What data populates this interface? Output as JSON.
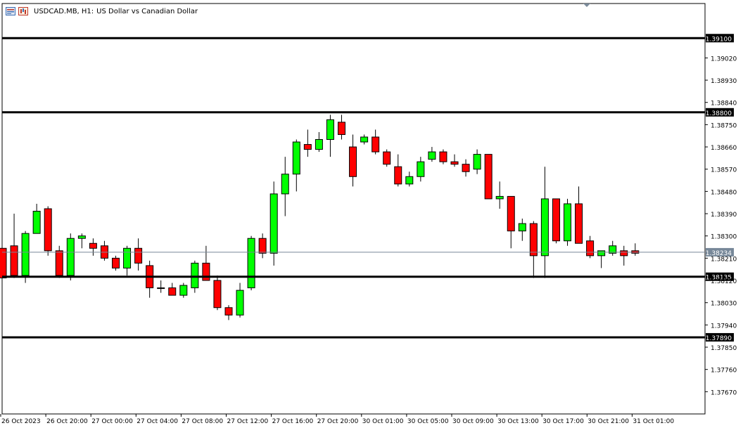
{
  "title": {
    "symbol": "USDCAD.MB, H1:",
    "description": "US Dollar vs Canadian Dollar"
  },
  "colors": {
    "bull": "#00ff00",
    "bear": "#ff0000",
    "wick": "#000000",
    "level_line": "#000000",
    "bid_line": "#778899",
    "bid_label_bg": "#778899",
    "level_label_bg": "#000000",
    "axis": "#000000",
    "background": "#ffffff"
  },
  "chart_data": {
    "type": "candlestick",
    "symbol": "USDCAD.MB",
    "timeframe": "H1",
    "ylim": [
      1.3758,
      1.3924
    ],
    "y_ticks": [
      "1.39020",
      "1.38930",
      "1.38840",
      "1.38750",
      "1.38660",
      "1.38570",
      "1.38480",
      "1.38390",
      "1.38300",
      "1.38210",
      "1.38120",
      "1.38030",
      "1.37940",
      "1.37850",
      "1.37760",
      "1.37670"
    ],
    "x_ticks": [
      "26 Oct 2023",
      "26 Oct 20:00",
      "27 Oct 00:00",
      "27 Oct 04:00",
      "27 Oct 08:00",
      "27 Oct 12:00",
      "27 Oct 16:00",
      "27 Oct 20:00",
      "30 Oct 01:00",
      "30 Oct 05:00",
      "30 Oct 09:00",
      "30 Oct 13:00",
      "30 Oct 17:00",
      "30 Oct 21:00",
      "31 Oct 01:00"
    ],
    "levels": [
      {
        "label": "1.39100",
        "value": 1.391
      },
      {
        "label": "1.38800",
        "value": 1.388
      },
      {
        "label": "1.38135",
        "value": 1.38135
      },
      {
        "label": "1.37890",
        "value": 1.3789
      }
    ],
    "bid": {
      "label": "1.38234",
      "value": 1.38234
    },
    "candles": [
      {
        "o": 1.3825,
        "h": 1.3825,
        "l": 1.3813,
        "c": 1.3813
      },
      {
        "o": 1.3826,
        "h": 1.3839,
        "l": 1.3813,
        "c": 1.3814
      },
      {
        "o": 1.3814,
        "h": 1.3832,
        "l": 1.3811,
        "c": 1.3831
      },
      {
        "o": 1.3831,
        "h": 1.3843,
        "l": 1.3831,
        "c": 1.384
      },
      {
        "o": 1.3841,
        "h": 1.3842,
        "l": 1.3822,
        "c": 1.3824
      },
      {
        "o": 1.3824,
        "h": 1.3826,
        "l": 1.3813,
        "c": 1.3814
      },
      {
        "o": 1.3814,
        "h": 1.3831,
        "l": 1.3812,
        "c": 1.3829
      },
      {
        "o": 1.3829,
        "h": 1.3831,
        "l": 1.3825,
        "c": 1.383
      },
      {
        "o": 1.3827,
        "h": 1.3829,
        "l": 1.3822,
        "c": 1.3825
      },
      {
        "o": 1.3826,
        "h": 1.3828,
        "l": 1.382,
        "c": 1.3821
      },
      {
        "o": 1.3821,
        "h": 1.3822,
        "l": 1.3816,
        "c": 1.3817
      },
      {
        "o": 1.3817,
        "h": 1.3826,
        "l": 1.3814,
        "c": 1.3825
      },
      {
        "o": 1.3825,
        "h": 1.3829,
        "l": 1.3816,
        "c": 1.3819
      },
      {
        "o": 1.3818,
        "h": 1.382,
        "l": 1.3805,
        "c": 1.3809
      },
      {
        "o": 1.3809,
        "h": 1.3812,
        "l": 1.3807,
        "c": 1.3809
      },
      {
        "o": 1.3809,
        "h": 1.3811,
        "l": 1.3806,
        "c": 1.3806
      },
      {
        "o": 1.3806,
        "h": 1.3811,
        "l": 1.3805,
        "c": 1.381
      },
      {
        "o": 1.3809,
        "h": 1.382,
        "l": 1.3807,
        "c": 1.3819
      },
      {
        "o": 1.3819,
        "h": 1.3826,
        "l": 1.3812,
        "c": 1.3812
      },
      {
        "o": 1.3812,
        "h": 1.3814,
        "l": 1.38,
        "c": 1.3801
      },
      {
        "o": 1.3801,
        "h": 1.3802,
        "l": 1.3796,
        "c": 1.3798
      },
      {
        "o": 1.3798,
        "h": 1.3811,
        "l": 1.3797,
        "c": 1.3808
      },
      {
        "o": 1.3809,
        "h": 1.383,
        "l": 1.3808,
        "c": 1.3829
      },
      {
        "o": 1.3829,
        "h": 1.3831,
        "l": 1.3821,
        "c": 1.3823
      },
      {
        "o": 1.3823,
        "h": 1.3852,
        "l": 1.3818,
        "c": 1.3847
      },
      {
        "o": 1.3847,
        "h": 1.3862,
        "l": 1.3838,
        "c": 1.3855
      },
      {
        "o": 1.3855,
        "h": 1.3869,
        "l": 1.3848,
        "c": 1.3868
      },
      {
        "o": 1.3867,
        "h": 1.3873,
        "l": 1.3862,
        "c": 1.3865
      },
      {
        "o": 1.3865,
        "h": 1.3872,
        "l": 1.3864,
        "c": 1.3869
      },
      {
        "o": 1.3869,
        "h": 1.3879,
        "l": 1.3862,
        "c": 1.3877
      },
      {
        "o": 1.3876,
        "h": 1.3879,
        "l": 1.3869,
        "c": 1.3871
      },
      {
        "o": 1.3866,
        "h": 1.3871,
        "l": 1.385,
        "c": 1.3854
      },
      {
        "o": 1.3868,
        "h": 1.3871,
        "l": 1.3867,
        "c": 1.387
      },
      {
        "o": 1.387,
        "h": 1.3873,
        "l": 1.3863,
        "c": 1.3864
      },
      {
        "o": 1.3864,
        "h": 1.3865,
        "l": 1.3858,
        "c": 1.3859
      },
      {
        "o": 1.3858,
        "h": 1.3863,
        "l": 1.385,
        "c": 1.3851
      },
      {
        "o": 1.3851,
        "h": 1.3856,
        "l": 1.385,
        "c": 1.3854
      },
      {
        "o": 1.3854,
        "h": 1.3862,
        "l": 1.3852,
        "c": 1.386
      },
      {
        "o": 1.3861,
        "h": 1.3866,
        "l": 1.386,
        "c": 1.3864
      },
      {
        "o": 1.3864,
        "h": 1.3865,
        "l": 1.3859,
        "c": 1.386
      },
      {
        "o": 1.386,
        "h": 1.3863,
        "l": 1.3858,
        "c": 1.3859
      },
      {
        "o": 1.3859,
        "h": 1.3861,
        "l": 1.3854,
        "c": 1.3856
      },
      {
        "o": 1.3857,
        "h": 1.3865,
        "l": 1.3855,
        "c": 1.3863
      },
      {
        "o": 1.3863,
        "h": 1.3863,
        "l": 1.3845,
        "c": 1.3845
      },
      {
        "o": 1.3845,
        "h": 1.3852,
        "l": 1.3841,
        "c": 1.3846
      },
      {
        "o": 1.3846,
        "h": 1.3846,
        "l": 1.3825,
        "c": 1.3832
      },
      {
        "o": 1.3832,
        "h": 1.3837,
        "l": 1.3828,
        "c": 1.3835
      },
      {
        "o": 1.3835,
        "h": 1.3836,
        "l": 1.3813,
        "c": 1.3822
      },
      {
        "o": 1.3822,
        "h": 1.3858,
        "l": 1.3813,
        "c": 1.3845
      },
      {
        "o": 1.3845,
        "h": 1.3845,
        "l": 1.3827,
        "c": 1.3828
      },
      {
        "o": 1.3828,
        "h": 1.3845,
        "l": 1.3826,
        "c": 1.3843
      },
      {
        "o": 1.3843,
        "h": 1.385,
        "l": 1.3827,
        "c": 1.3827
      },
      {
        "o": 1.3828,
        "h": 1.383,
        "l": 1.3821,
        "c": 1.3822
      },
      {
        "o": 1.3822,
        "h": 1.3824,
        "l": 1.3817,
        "c": 1.3824
      },
      {
        "o": 1.3823,
        "h": 1.3828,
        "l": 1.3822,
        "c": 1.3826
      },
      {
        "o": 1.3824,
        "h": 1.3826,
        "l": 1.3818,
        "c": 1.3822
      },
      {
        "o": 1.3824,
        "h": 1.3827,
        "l": 1.3822,
        "c": 1.3823
      }
    ]
  }
}
